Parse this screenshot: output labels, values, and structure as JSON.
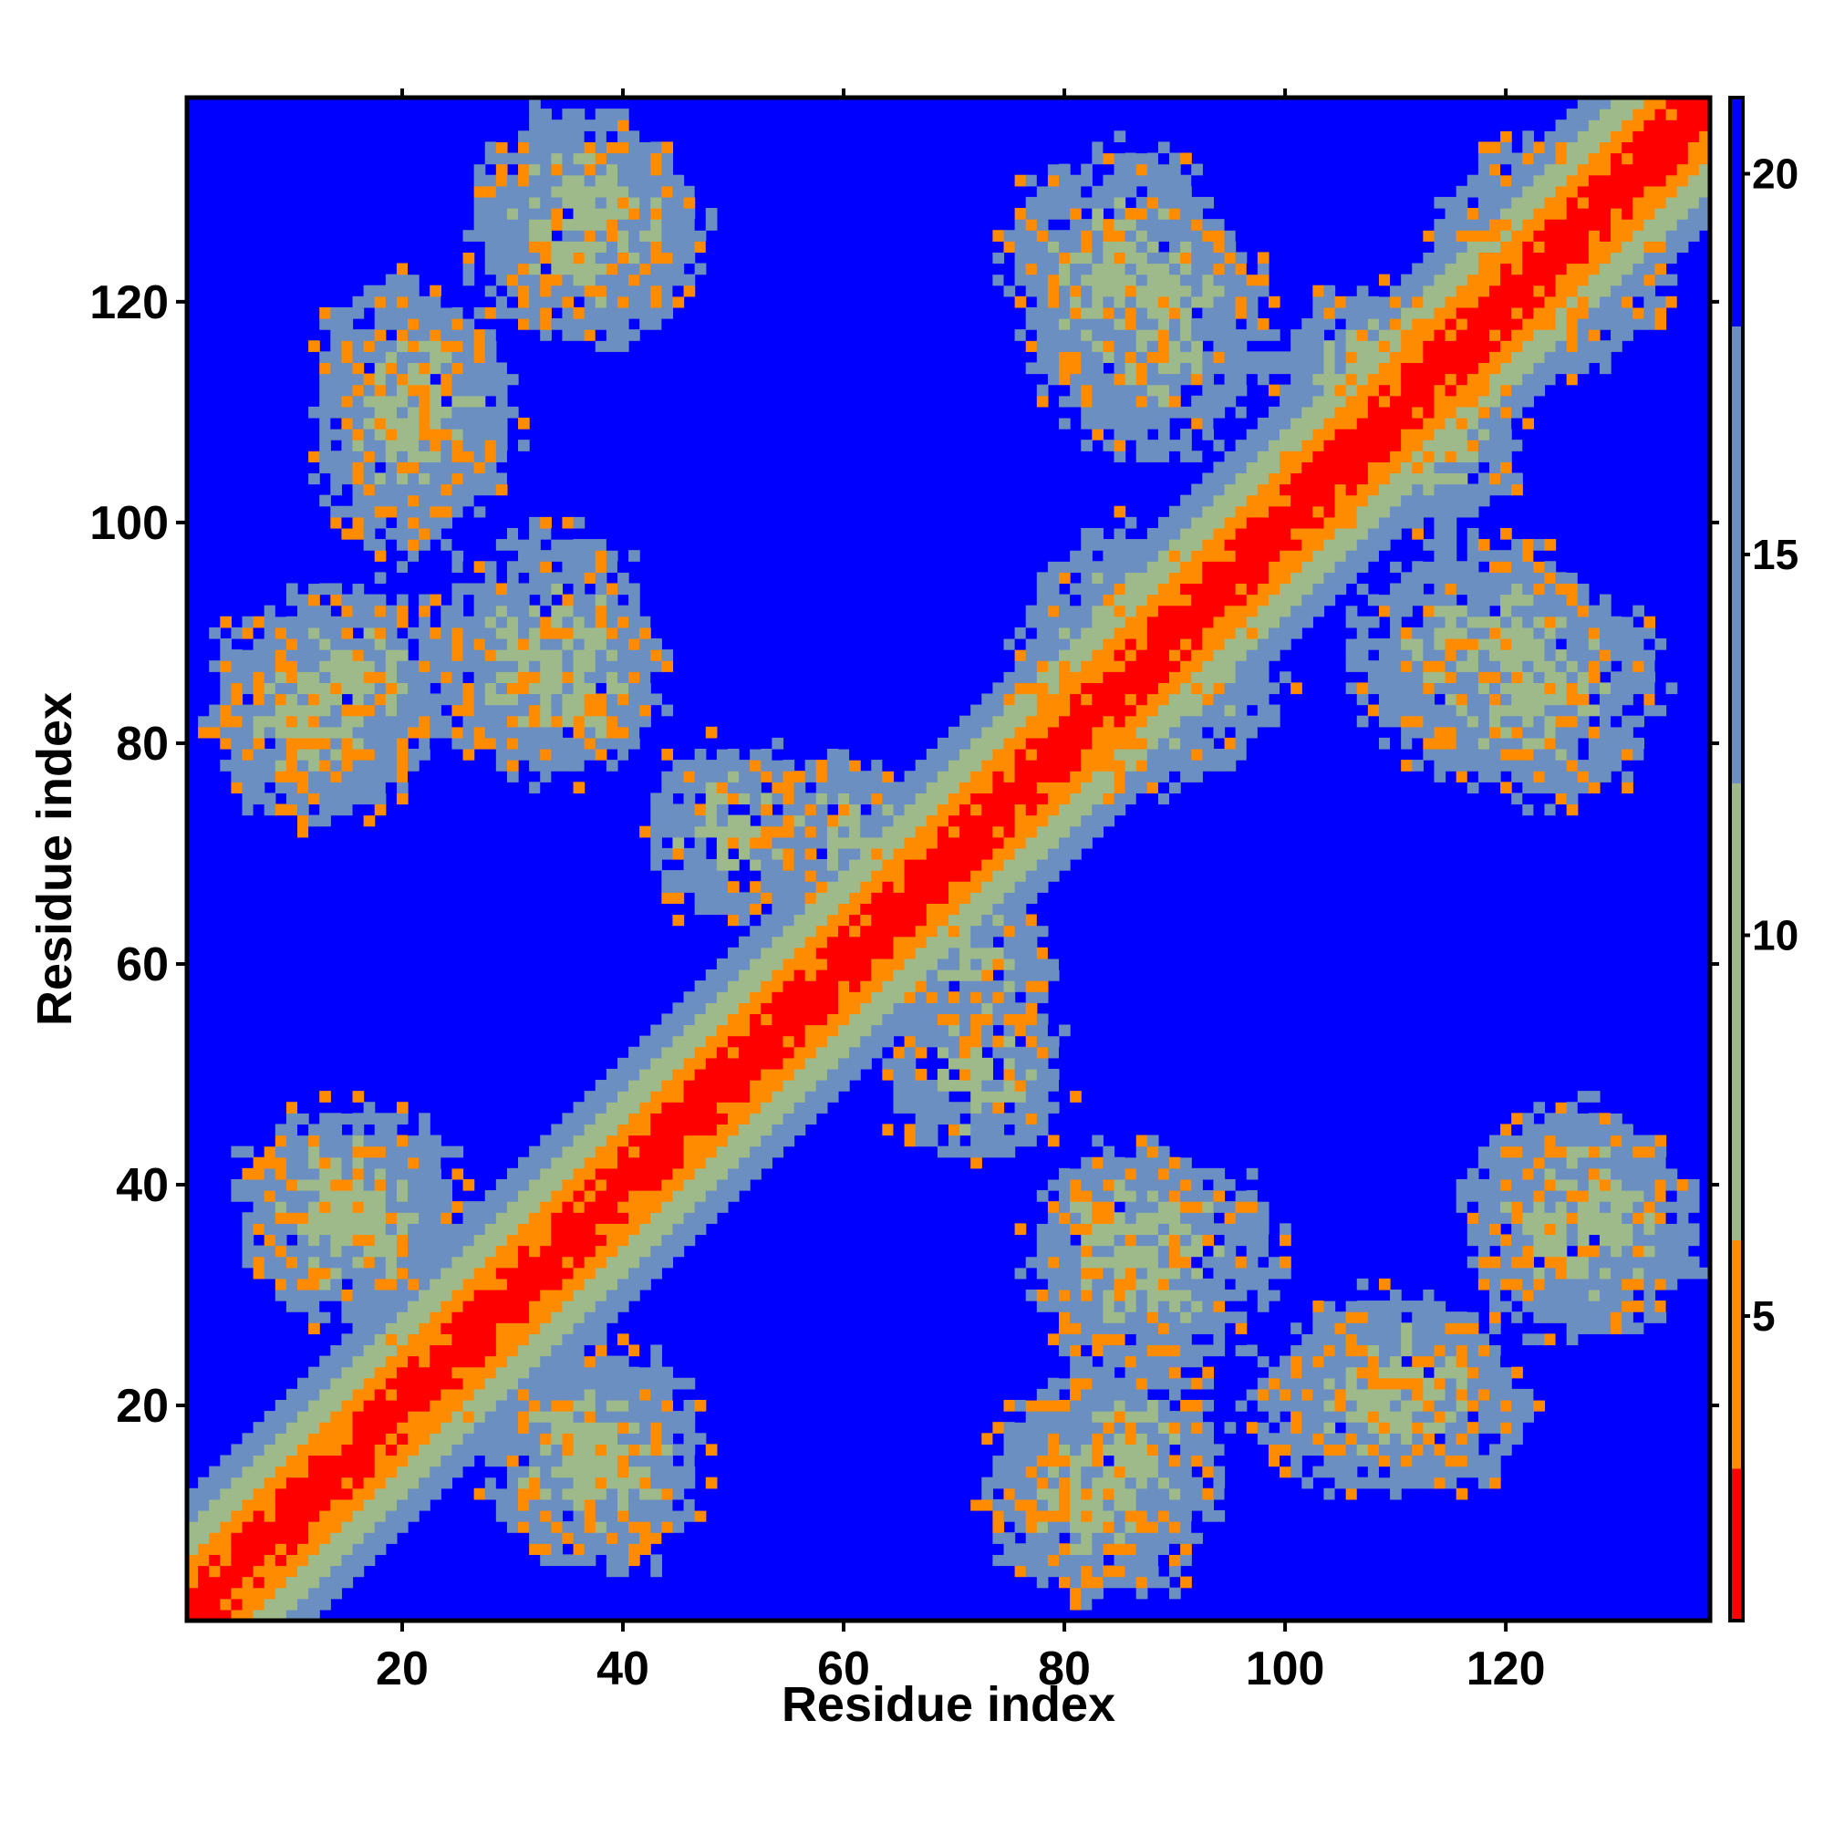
{
  "chart_data": {
    "type": "heatmap",
    "title": "",
    "xlabel": "Residue index",
    "ylabel": "Residue index",
    "xlim": [
      0.5,
      138.5
    ],
    "ylim": [
      0.5,
      138.5
    ],
    "n_residues": 138,
    "x_ticks": [
      20,
      40,
      60,
      80,
      100,
      120
    ],
    "y_ticks": [
      20,
      40,
      60,
      80,
      100,
      120
    ],
    "colorbar": {
      "ticks": [
        5,
        10,
        15,
        20
      ],
      "range": [
        1,
        21
      ],
      "colors": {
        "near": "#ff0000",
        "mid_near": "#ff8c00",
        "mid": "#9fba8a",
        "far_mid": "#6a8fc0",
        "far": "#0000ff"
      }
    },
    "description_of_values": "Pairwise residue distance map; symmetric; diagonal band of low distances, off-diagonal contact clusters.",
    "contact_clusters": [
      {
        "x": 14,
        "y": 85,
        "sx": 11,
        "sy": 9
      },
      {
        "x": 35,
        "y": 85,
        "sx": 8,
        "sy": 7
      },
      {
        "x": 22,
        "y": 110,
        "sx": 8,
        "sy": 10
      },
      {
        "x": 38,
        "y": 126,
        "sx": 9,
        "sy": 9
      },
      {
        "x": 15,
        "y": 38,
        "sx": 10,
        "sy": 9
      },
      {
        "x": 36,
        "y": 16,
        "sx": 9,
        "sy": 9
      },
      {
        "x": 82,
        "y": 12,
        "sx": 9,
        "sy": 9
      },
      {
        "x": 88,
        "y": 33,
        "sx": 11,
        "sy": 10
      },
      {
        "x": 110,
        "y": 20,
        "sx": 12,
        "sy": 8
      },
      {
        "x": 127,
        "y": 36,
        "sx": 10,
        "sy": 10
      },
      {
        "x": 85,
        "y": 88,
        "sx": 9,
        "sy": 11
      },
      {
        "x": 88,
        "y": 118,
        "sx": 10,
        "sy": 12
      },
      {
        "x": 112,
        "y": 108,
        "sx": 9,
        "sy": 9
      },
      {
        "x": 123,
        "y": 85,
        "sx": 11,
        "sy": 10
      },
      {
        "x": 126,
        "y": 124,
        "sx": 9,
        "sy": 10
      },
      {
        "x": 60,
        "y": 72,
        "sx": 7,
        "sy": 7
      },
      {
        "x": 72,
        "y": 50,
        "sx": 8,
        "sy": 8
      }
    ]
  }
}
